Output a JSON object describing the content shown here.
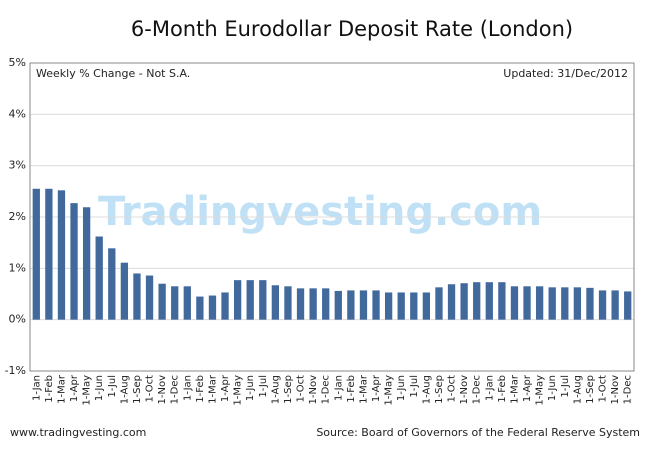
{
  "chart_data": {
    "type": "bar",
    "title": "6-Month Eurodollar Deposit Rate (London)",
    "subtitle": "Weekly % Change - Not S.A.",
    "updated": "Updated: 31/Dec/2012",
    "watermark": "Tradingvesting.com",
    "footer_left": "www.tradingvesting.com",
    "source": "Source: Board of Governors of the Federal Reserve System",
    "categories": [
      "1-Jan",
      "1-Feb",
      "1-Mar",
      "1-Apr",
      "1-May",
      "1-Jun",
      "1-Jul",
      "1-Aug",
      "1-Sep",
      "1-Oct",
      "1-Nov",
      "1-Dec",
      "1-Jan",
      "1-Feb",
      "1-Mar",
      "1-Apr",
      "1-May",
      "1-Jun",
      "1-Jul",
      "1-Aug",
      "1-Sep",
      "1-Oct",
      "1-Nov",
      "1-Dec",
      "1-Jan",
      "1-Feb",
      "1-Mar",
      "1-Apr",
      "1-May",
      "1-Jun",
      "1-Jul",
      "1-Aug",
      "1-Sep",
      "1-Oct",
      "1-Nov",
      "1-Dec",
      "1-Jan",
      "1-Feb",
      "1-Mar",
      "1-Apr",
      "1-May",
      "1-Jun",
      "1-Jul",
      "1-Aug",
      "1-Sep",
      "1-Oct",
      "1-Nov",
      "1-Dec"
    ],
    "values": [
      2.55,
      2.55,
      2.52,
      2.27,
      2.19,
      1.62,
      1.39,
      1.11,
      0.9,
      0.86,
      0.7,
      0.65,
      0.65,
      0.45,
      0.47,
      0.53,
      0.77,
      0.77,
      0.77,
      0.67,
      0.65,
      0.61,
      0.61,
      0.61,
      0.56,
      0.57,
      0.57,
      0.57,
      0.53,
      0.53,
      0.53,
      0.53,
      0.63,
      0.69,
      0.71,
      0.73,
      0.73,
      0.73,
      0.65,
      0.65,
      0.65,
      0.63,
      0.63,
      0.63,
      0.62,
      0.57,
      0.57,
      0.55
    ],
    "color": "#41699c",
    "ylim": [
      -1,
      5
    ],
    "yticks": [
      {
        "value": -1,
        "label": "-1%"
      },
      {
        "value": 0,
        "label": "0%"
      },
      {
        "value": 1,
        "label": "1%"
      },
      {
        "value": 2,
        "label": "2%"
      },
      {
        "value": 3,
        "label": "3%"
      },
      {
        "value": 4,
        "label": "4%"
      },
      {
        "value": 5,
        "label": "5%"
      }
    ],
    "grid": true
  }
}
